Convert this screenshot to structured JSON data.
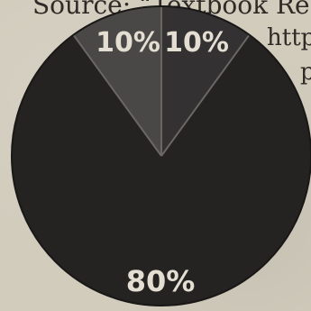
{
  "background_text": {
    "source_line": "Source: “Textbook Read",
    "url_line_1": "http",
    "url_line_2": "p"
  },
  "chart_data": {
    "type": "pie",
    "slices": [
      {
        "label": "10%",
        "value": 10,
        "color": "#4a4846"
      },
      {
        "label": "10%",
        "value": 10,
        "color": "#333131"
      },
      {
        "label": "80%",
        "value": 80,
        "color": "#242322"
      }
    ]
  },
  "colors": {
    "background": "#d2ccbd",
    "label_text": "#e3ddd2",
    "divider": "#6a6764"
  }
}
